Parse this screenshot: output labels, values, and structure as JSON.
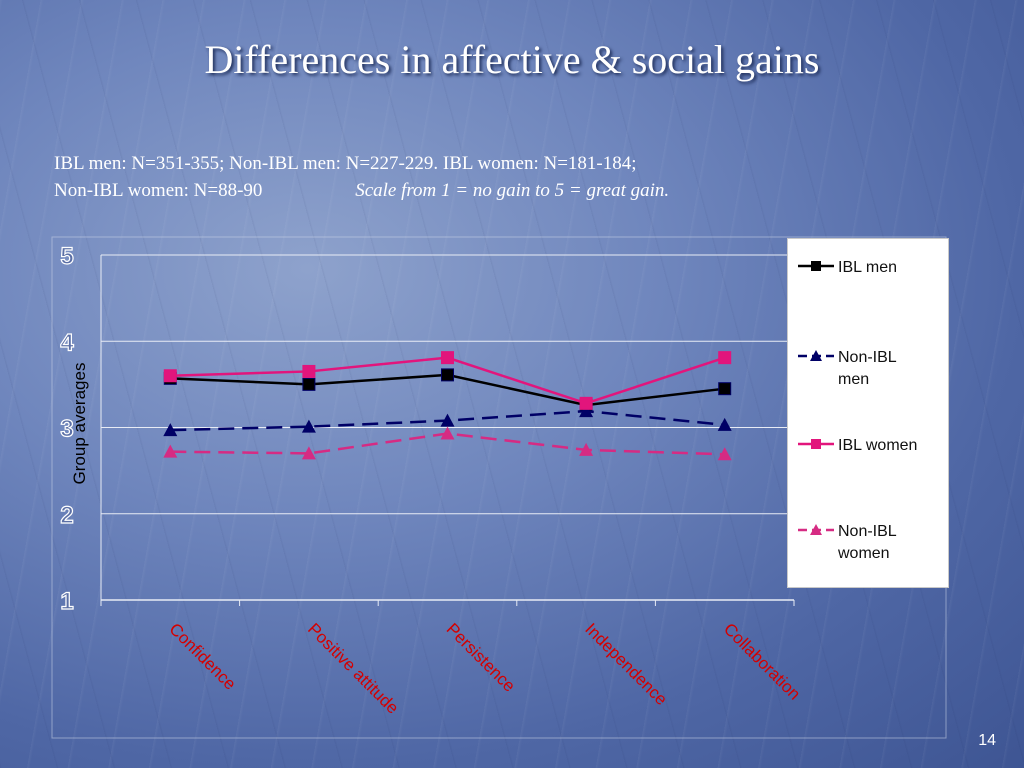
{
  "slide": {
    "title": "Differences in affective & social gains",
    "subtitle_line1": "IBL men: N=351-355;  Non-IBL men: N=227-229.   IBL women:  N=181-184;",
    "subtitle_line2_left": "Non-IBL women: N=88-90",
    "subtitle_line2_right": "Scale from 1 = no gain   to 5 = great gain.",
    "slide_number": "14"
  },
  "colors": {
    "ibl_men": "#000000",
    "non_ibl_men": "#000066",
    "ibl_women": "#e2157c",
    "non_ibl_women": "#d62b83",
    "tick_label": "#d40000"
  },
  "chart_data": {
    "type": "line",
    "title": "",
    "xlabel": "",
    "ylabel": "Group averages",
    "ylim": [
      1,
      5
    ],
    "yticks": [
      "1",
      "2",
      "3",
      "4",
      "5"
    ],
    "grid": true,
    "legend_position": "right",
    "categories": [
      "Confidence",
      "Positive attitude",
      "Persistence",
      "Independence",
      "Collaboration"
    ],
    "series": [
      {
        "name": "IBL men",
        "values": [
          3.57,
          3.5,
          3.61,
          3.26,
          3.45
        ],
        "marker": "square",
        "dash": "solid",
        "color": "#000000"
      },
      {
        "name": "Non-IBL men",
        "values": [
          2.97,
          3.01,
          3.08,
          3.19,
          3.03
        ],
        "marker": "triangle",
        "dash": "dashed",
        "color": "#000066"
      },
      {
        "name": "IBL women",
        "values": [
          3.6,
          3.65,
          3.81,
          3.28,
          3.81
        ],
        "marker": "square",
        "dash": "solid",
        "color": "#e2157c"
      },
      {
        "name": "Non-IBL women",
        "values": [
          2.72,
          2.7,
          2.93,
          2.74,
          2.69
        ],
        "marker": "triangle",
        "dash": "dashed",
        "color": "#d62b83"
      }
    ]
  }
}
